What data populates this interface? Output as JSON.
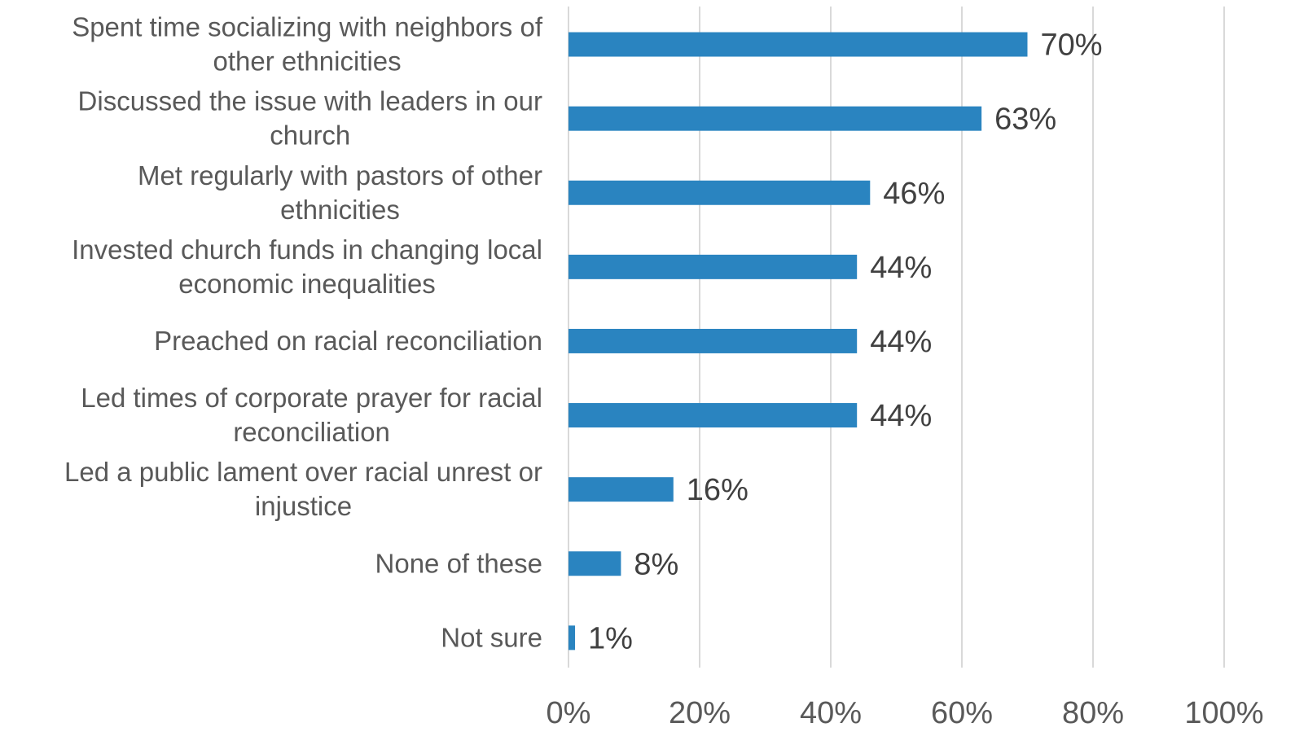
{
  "chart_data": {
    "type": "bar",
    "orientation": "horizontal",
    "categories": [
      [
        "Spent time socializing with neighbors of",
        "other ethnicities"
      ],
      [
        "Discussed the issue with leaders in our",
        "church"
      ],
      [
        "Met regularly with pastors of other",
        "ethnicities"
      ],
      [
        "Invested church funds in changing local",
        "economic inequalities"
      ],
      [
        "Preached on racial reconciliation"
      ],
      [
        "Led times of corporate prayer for racial",
        "reconciliation"
      ],
      [
        "Led a public lament over racial unrest or",
        "injustice"
      ],
      [
        "None of these"
      ],
      [
        "Not sure"
      ]
    ],
    "values": [
      70,
      63,
      46,
      44,
      44,
      44,
      16,
      8,
      1
    ],
    "data_labels": [
      "70%",
      "63%",
      "46%",
      "44%",
      "44%",
      "44%",
      "16%",
      "8%",
      "1%"
    ],
    "xlim": [
      0,
      100
    ],
    "x_ticks": [
      0,
      20,
      40,
      60,
      80,
      100
    ],
    "x_tick_labels": [
      "0%",
      "20%",
      "40%",
      "60%",
      "80%",
      "100%"
    ],
    "grid": "vertical",
    "bar_color": "#2a84c0",
    "legend": "none"
  }
}
